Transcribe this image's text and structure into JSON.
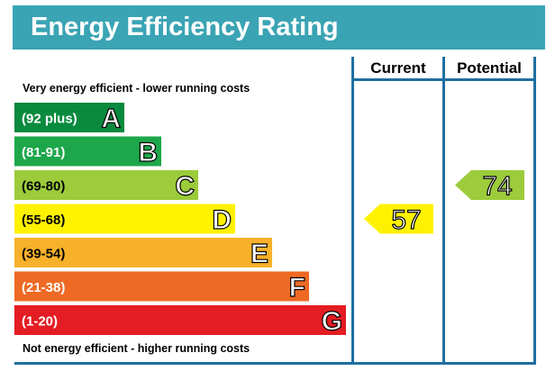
{
  "header": {
    "title": "Energy Efficiency Rating"
  },
  "columns": {
    "current": "Current",
    "potential": "Potential"
  },
  "notes": {
    "top": "Very energy efficient - lower running costs",
    "bottom": "Not energy efficient - higher running costs"
  },
  "chart_data": {
    "type": "bar",
    "title": "Energy Efficiency Rating",
    "bands": [
      {
        "letter": "A",
        "range": "(92 plus)",
        "min": 92,
        "max": 100,
        "color": "#0a8a3e"
      },
      {
        "letter": "B",
        "range": "(81-91)",
        "min": 81,
        "max": 91,
        "color": "#1da74a"
      },
      {
        "letter": "C",
        "range": "(69-80)",
        "min": 69,
        "max": 80,
        "color": "#9ccb3b"
      },
      {
        "letter": "D",
        "range": "(55-68)",
        "min": 55,
        "max": 68,
        "color": "#fff200"
      },
      {
        "letter": "E",
        "range": "(39-54)",
        "min": 39,
        "max": 54,
        "color": "#f7b12a"
      },
      {
        "letter": "F",
        "range": "(21-38)",
        "min": 21,
        "max": 38,
        "color": "#ee6a24"
      },
      {
        "letter": "G",
        "range": "(1-20)",
        "min": 1,
        "max": 20,
        "color": "#e31d23"
      }
    ],
    "current": {
      "value": 57,
      "band": "D"
    },
    "potential": {
      "value": 74,
      "band": "C"
    }
  }
}
